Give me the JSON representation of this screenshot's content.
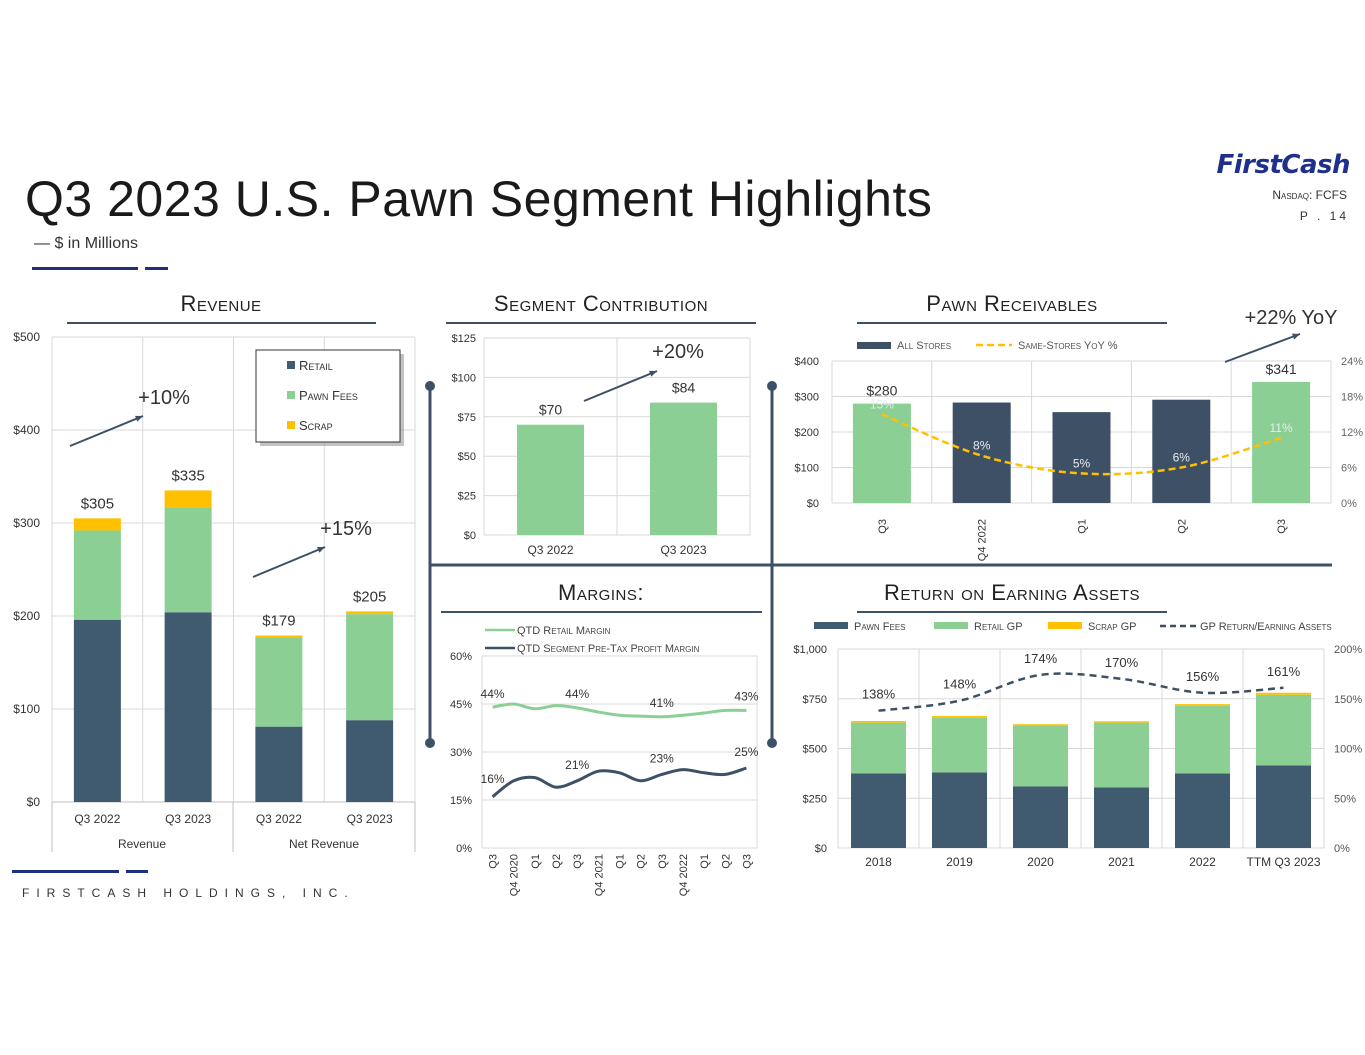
{
  "header": {
    "title": "Q3 2023 U.S. Pawn Segment Highlights",
    "subtitle": "— $ in Millions",
    "logo_text": "FirstCash",
    "ticker": "Nasdaq: FCFS",
    "page": "P . 14"
  },
  "footer": {
    "company": "FIRSTCASH HOLDINGS, INC."
  },
  "colors": {
    "navy": "#405a70",
    "green": "#8bcf95",
    "gold": "#ffc000",
    "dark": "#3d5066"
  },
  "chart_data": [
    {
      "id": "revenue",
      "type": "bar",
      "title": "Revenue",
      "stacked": true,
      "categories": [
        "Q3 2022",
        "Q3 2023",
        "Q3 2022",
        "Q3 2023"
      ],
      "groups": [
        "Revenue",
        "Net Revenue"
      ],
      "ylim": [
        0,
        500
      ],
      "yticks": [
        "$0",
        "$100",
        "$200",
        "$300",
        "$400",
        "$500"
      ],
      "series": [
        {
          "name": "Retail",
          "values": [
            196,
            204,
            81,
            88
          ]
        },
        {
          "name": "Pawn Fees",
          "values": [
            96,
            113,
            96,
            114
          ]
        },
        {
          "name": "Scrap",
          "values": [
            13,
            18,
            2,
            3
          ]
        }
      ],
      "totals": [
        "$305",
        "$335",
        "$179",
        "$205"
      ],
      "annotations": [
        "+10%",
        "+15%"
      ]
    },
    {
      "id": "segment_contribution",
      "type": "bar",
      "title": "Segment Contribution",
      "categories": [
        "Q3 2022",
        "Q3 2023"
      ],
      "values": [
        70,
        84
      ],
      "labels": [
        "$70",
        "$84"
      ],
      "ylim": [
        0,
        125
      ],
      "yticks": [
        "$0",
        "$25",
        "$50",
        "$75",
        "$100",
        "$125"
      ],
      "annotation": "+20%"
    },
    {
      "id": "pawn_receivables",
      "type": "bar",
      "title": "Pawn Receivables",
      "categories": [
        "Q3",
        "Q4 2022",
        "Q1",
        "Q2",
        "Q3"
      ],
      "ylim": [
        0,
        400
      ],
      "yticks": [
        "$0",
        "$100",
        "$200",
        "$300",
        "$400"
      ],
      "y2ticks": [
        "0%",
        "6%",
        "12%",
        "18%",
        "24%"
      ],
      "series": [
        {
          "name": "All Stores",
          "values": [
            280,
            283,
            256,
            291,
            341
          ]
        },
        {
          "name": "Same-Stores YoY %",
          "values": [
            15,
            8,
            5,
            6,
            11
          ]
        }
      ],
      "bar_labels": [
        "$280",
        "$341"
      ],
      "pct_labels": [
        "15%",
        "8%",
        "5%",
        "6%",
        "11%"
      ],
      "annotation": "+22% YoY"
    },
    {
      "id": "margins",
      "type": "line",
      "title": "Margins:",
      "x": [
        "Q3",
        "Q4 2020",
        "Q1",
        "Q2",
        "Q3",
        "Q4 2021",
        "Q1",
        "Q2",
        "Q3",
        "Q4 2022",
        "Q1",
        "Q2",
        "Q3"
      ],
      "ylim": [
        0,
        60
      ],
      "yticks": [
        "0%",
        "15%",
        "30%",
        "45%",
        "60%"
      ],
      "series": [
        {
          "name": "QTD Retail Margin",
          "values": [
            44,
            45,
            43.5,
            44.5,
            43.8,
            42.5,
            41.5,
            41.2,
            41,
            41.5,
            42.2,
            43,
            43
          ]
        },
        {
          "name": "QTD Segment Pre-Tax Profit Margin",
          "values": [
            16,
            21,
            22,
            19,
            21,
            24,
            23.5,
            21,
            23,
            24.5,
            23.5,
            23,
            25
          ]
        }
      ],
      "point_labels": [
        "44%",
        "44%",
        "41%",
        "43%",
        "16%",
        "21%",
        "23%",
        "25%"
      ]
    },
    {
      "id": "roea",
      "type": "bar",
      "title": "Return on Earning Assets",
      "stacked": true,
      "categories": [
        "2018",
        "2019",
        "2020",
        "2021",
        "2022",
        "TTM Q3 2023"
      ],
      "ylim": [
        0,
        1000
      ],
      "yticks": [
        "$0",
        "$250",
        "$500",
        "$750",
        "$1,000"
      ],
      "y2ticks": [
        "0%",
        "50%",
        "100%",
        "150%",
        "200%"
      ],
      "series": [
        {
          "name": "Pawn Fees",
          "values": [
            375,
            380,
            310,
            305,
            375,
            415
          ]
        },
        {
          "name": "Retail GP",
          "values": [
            255,
            275,
            305,
            325,
            340,
            355
          ]
        },
        {
          "name": "Scrap GP",
          "values": [
            8,
            8,
            7,
            7,
            8,
            10
          ]
        },
        {
          "name": "GP Return/Earning Assets",
          "values": [
            138,
            148,
            174,
            170,
            156,
            161
          ]
        }
      ],
      "pct_labels": [
        "138%",
        "148%",
        "174%",
        "170%",
        "156%",
        "161%"
      ]
    }
  ]
}
